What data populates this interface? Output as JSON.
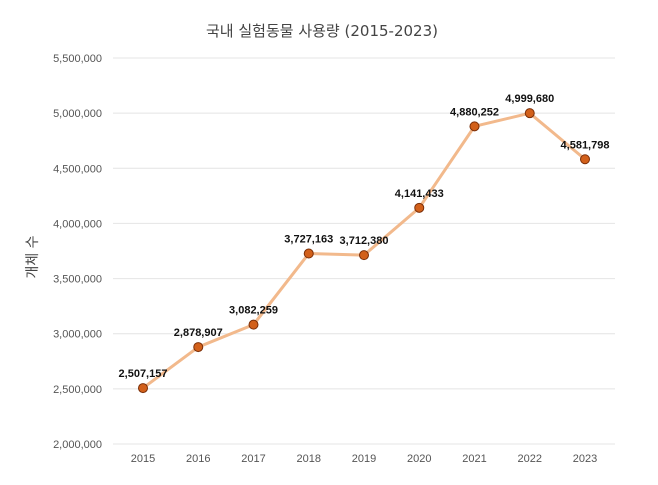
{
  "chart_data": {
    "type": "line",
    "title": "국내 실험동물 사용량 (2015-2023)",
    "xlabel": "",
    "ylabel": "개체 수",
    "categories": [
      "2015",
      "2016",
      "2017",
      "2018",
      "2019",
      "2020",
      "2021",
      "2022",
      "2023"
    ],
    "values": [
      2507157,
      2878907,
      3082259,
      3727163,
      3712380,
      4141433,
      4880252,
      4999680,
      4581798
    ],
    "data_labels": [
      "2,507,157",
      "2,878,907",
      "3,082,259",
      "3,727,163",
      "3,712,380",
      "4,141,433",
      "4,880,252",
      "4,999,680",
      "4,581,798"
    ],
    "ylim": [
      2000000,
      5500000
    ],
    "yticks": [
      2000000,
      2500000,
      3000000,
      3500000,
      4000000,
      4500000,
      5000000,
      5500000
    ],
    "ytick_labels": [
      "2,000,000",
      "2,500,000",
      "3,000,000",
      "3,500,000",
      "4,000,000",
      "4,500,000",
      "5,000,000",
      "5,500,000"
    ],
    "grid": true,
    "legend": "none",
    "line_color": "#f2b98c",
    "marker_color": "#d2601a",
    "marker_edge": "#7a2e08"
  }
}
